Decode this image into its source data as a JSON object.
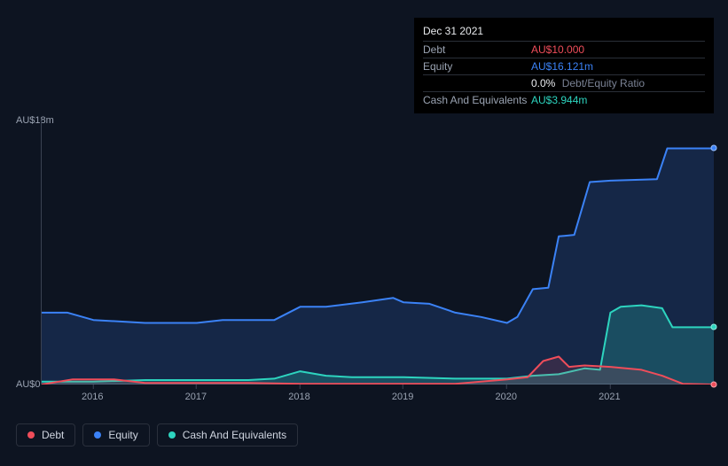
{
  "tooltip": {
    "date": "Dec 31 2021",
    "rows": [
      {
        "label": "Debt",
        "value": "AU$10.000",
        "color": "#ef4d5a",
        "extra": ""
      },
      {
        "label": "Equity",
        "value": "AU$16.121m",
        "color": "#3b82f6",
        "extra": ""
      },
      {
        "label": "",
        "value": "0.0%",
        "color": "#e8eaed",
        "extra": "Debt/Equity Ratio"
      },
      {
        "label": "Cash And Equivalents",
        "value": "AU$3.944m",
        "color": "#2dd4bf",
        "extra": ""
      }
    ]
  },
  "chart": {
    "type": "area",
    "background_color": "#0d1421",
    "grid_color": "#1a2230",
    "axis_color": "#3a4252",
    "label_color": "#9aa3b2",
    "label_fontsize": 11,
    "y_axis": {
      "min": 0,
      "max": 18,
      "ticks": [
        {
          "value": 0,
          "label": "AU$0"
        },
        {
          "value": 18,
          "label": "AU$18m"
        }
      ]
    },
    "x_axis": {
      "min": 2015.5,
      "max": 2022.0,
      "ticks": [
        {
          "value": 2016,
          "label": "2016"
        },
        {
          "value": 2017,
          "label": "2017"
        },
        {
          "value": 2018,
          "label": "2018"
        },
        {
          "value": 2019,
          "label": "2019"
        },
        {
          "value": 2020,
          "label": "2020"
        },
        {
          "value": 2021,
          "label": "2021"
        }
      ]
    },
    "series": [
      {
        "name": "Equity",
        "color": "#3b82f6",
        "fill_opacity": 0.18,
        "line_width": 2,
        "points": [
          [
            2015.5,
            4.9
          ],
          [
            2015.75,
            4.9
          ],
          [
            2016.0,
            4.4
          ],
          [
            2016.5,
            4.2
          ],
          [
            2017.0,
            4.2
          ],
          [
            2017.25,
            4.4
          ],
          [
            2017.5,
            4.4
          ],
          [
            2017.75,
            4.4
          ],
          [
            2018.0,
            5.3
          ],
          [
            2018.25,
            5.3
          ],
          [
            2018.6,
            5.6
          ],
          [
            2018.9,
            5.9
          ],
          [
            2019.0,
            5.6
          ],
          [
            2019.25,
            5.5
          ],
          [
            2019.5,
            4.9
          ],
          [
            2019.75,
            4.6
          ],
          [
            2020.0,
            4.2
          ],
          [
            2020.1,
            4.6
          ],
          [
            2020.25,
            6.5
          ],
          [
            2020.4,
            6.6
          ],
          [
            2020.5,
            10.1
          ],
          [
            2020.65,
            10.2
          ],
          [
            2020.8,
            13.8
          ],
          [
            2021.0,
            13.9
          ],
          [
            2021.45,
            14.0
          ],
          [
            2021.55,
            16.1
          ],
          [
            2022.0,
            16.1
          ]
        ]
      },
      {
        "name": "Cash And Equivalents",
        "color": "#2dd4bf",
        "fill_opacity": 0.22,
        "line_width": 2,
        "points": [
          [
            2015.5,
            0.2
          ],
          [
            2016.0,
            0.2
          ],
          [
            2016.5,
            0.3
          ],
          [
            2017.0,
            0.3
          ],
          [
            2017.5,
            0.3
          ],
          [
            2017.75,
            0.4
          ],
          [
            2018.0,
            0.9
          ],
          [
            2018.25,
            0.6
          ],
          [
            2018.5,
            0.5
          ],
          [
            2019.0,
            0.5
          ],
          [
            2019.5,
            0.4
          ],
          [
            2020.0,
            0.4
          ],
          [
            2020.25,
            0.6
          ],
          [
            2020.5,
            0.7
          ],
          [
            2020.75,
            1.1
          ],
          [
            2020.9,
            1.0
          ],
          [
            2021.0,
            4.9
          ],
          [
            2021.1,
            5.3
          ],
          [
            2021.3,
            5.4
          ],
          [
            2021.5,
            5.2
          ],
          [
            2021.6,
            3.9
          ],
          [
            2022.0,
            3.9
          ]
        ]
      },
      {
        "name": "Debt",
        "color": "#ef4d5a",
        "fill_opacity": 0.15,
        "line_width": 2,
        "points": [
          [
            2015.5,
            0.0
          ],
          [
            2015.8,
            0.35
          ],
          [
            2016.2,
            0.35
          ],
          [
            2016.5,
            0.1
          ],
          [
            2017.0,
            0.1
          ],
          [
            2017.5,
            0.1
          ],
          [
            2018.0,
            0.05
          ],
          [
            2018.5,
            0.05
          ],
          [
            2019.0,
            0.05
          ],
          [
            2019.5,
            0.05
          ],
          [
            2020.0,
            0.35
          ],
          [
            2020.2,
            0.5
          ],
          [
            2020.35,
            1.6
          ],
          [
            2020.5,
            1.9
          ],
          [
            2020.6,
            1.2
          ],
          [
            2020.75,
            1.3
          ],
          [
            2021.0,
            1.2
          ],
          [
            2021.3,
            1.0
          ],
          [
            2021.5,
            0.6
          ],
          [
            2021.7,
            0.05
          ],
          [
            2022.0,
            0.0
          ]
        ]
      }
    ]
  },
  "legend": [
    {
      "label": "Debt",
      "color": "#ef4d5a"
    },
    {
      "label": "Equity",
      "color": "#3b82f6"
    },
    {
      "label": "Cash And Equivalents",
      "color": "#2dd4bf"
    }
  ]
}
